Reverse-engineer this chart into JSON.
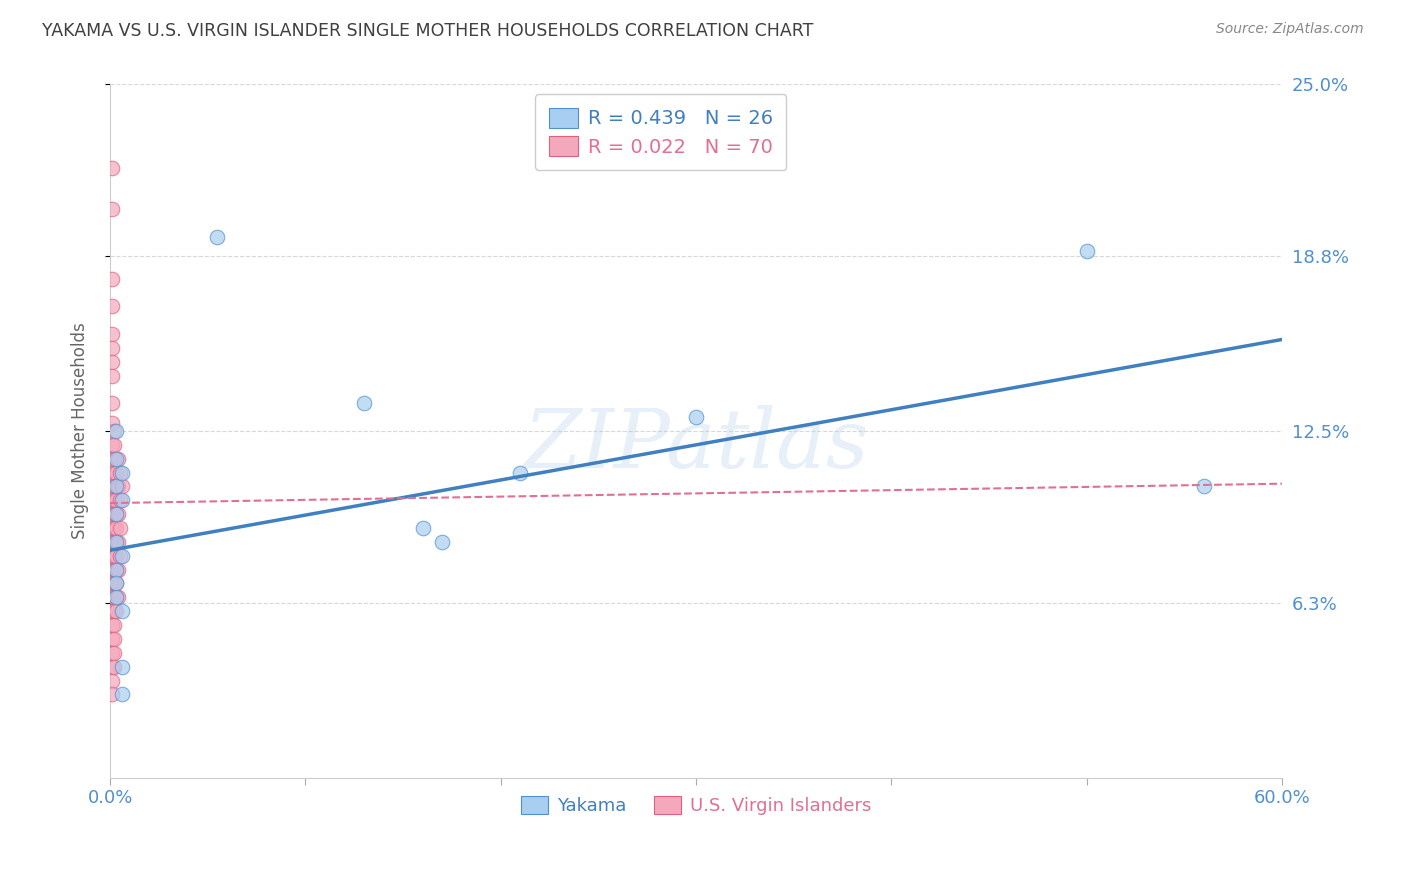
{
  "title": "YAKAMA VS U.S. VIRGIN ISLANDER SINGLE MOTHER HOUSEHOLDS CORRELATION CHART",
  "source": "Source: ZipAtlas.com",
  "ylabel": "Single Mother Households",
  "xlim": [
    0.0,
    0.6
  ],
  "ylim": [
    0.0,
    0.25
  ],
  "xtick_positions": [
    0.0,
    0.1,
    0.2,
    0.3,
    0.4,
    0.5,
    0.6
  ],
  "xticklabels": [
    "0.0%",
    "",
    "",
    "",
    "",
    "",
    "60.0%"
  ],
  "ytick_positions": [
    0.063,
    0.125,
    0.188,
    0.25
  ],
  "ytick_labels": [
    "6.3%",
    "12.5%",
    "18.8%",
    "25.0%"
  ],
  "background_color": "#ffffff",
  "grid_color": "#d8d8d8",
  "legend_r_blue": "R = 0.439",
  "legend_n_blue": "N = 26",
  "legend_r_pink": "R = 0.022",
  "legend_n_pink": "N = 70",
  "blue_fill": "#a8cef0",
  "pink_fill": "#f4a8bc",
  "blue_edge": "#5090d0",
  "pink_edge": "#e06080",
  "blue_line_color": "#4080c0",
  "pink_line_color": "#e07090",
  "axis_tick_color": "#5090d0",
  "title_color": "#404040",
  "watermark": "ZIPatlas",
  "yakama_scatter": [
    [
      0.003,
      0.085
    ],
    [
      0.003,
      0.095
    ],
    [
      0.003,
      0.105
    ],
    [
      0.003,
      0.075
    ],
    [
      0.003,
      0.115
    ],
    [
      0.003,
      0.125
    ],
    [
      0.003,
      0.065
    ],
    [
      0.003,
      0.07
    ],
    [
      0.006,
      0.11
    ],
    [
      0.006,
      0.1
    ],
    [
      0.006,
      0.08
    ],
    [
      0.006,
      0.06
    ],
    [
      0.006,
      0.04
    ],
    [
      0.006,
      0.03
    ],
    [
      0.055,
      0.195
    ],
    [
      0.13,
      0.135
    ],
    [
      0.16,
      0.09
    ],
    [
      0.17,
      0.085
    ],
    [
      0.21,
      0.11
    ],
    [
      0.3,
      0.13
    ],
    [
      0.5,
      0.19
    ],
    [
      0.56,
      0.105
    ]
  ],
  "virgin_islander_scatter": [
    [
      0.001,
      0.22
    ],
    [
      0.001,
      0.205
    ],
    [
      0.001,
      0.18
    ],
    [
      0.001,
      0.17
    ],
    [
      0.001,
      0.16
    ],
    [
      0.001,
      0.155
    ],
    [
      0.001,
      0.15
    ],
    [
      0.001,
      0.145
    ],
    [
      0.001,
      0.135
    ],
    [
      0.001,
      0.128
    ],
    [
      0.001,
      0.12
    ],
    [
      0.001,
      0.115
    ],
    [
      0.001,
      0.108
    ],
    [
      0.001,
      0.1
    ],
    [
      0.001,
      0.095
    ],
    [
      0.001,
      0.09
    ],
    [
      0.001,
      0.085
    ],
    [
      0.001,
      0.08
    ],
    [
      0.001,
      0.075
    ],
    [
      0.001,
      0.07
    ],
    [
      0.001,
      0.065
    ],
    [
      0.001,
      0.06
    ],
    [
      0.001,
      0.055
    ],
    [
      0.001,
      0.05
    ],
    [
      0.001,
      0.045
    ],
    [
      0.001,
      0.04
    ],
    [
      0.001,
      0.035
    ],
    [
      0.001,
      0.03
    ],
    [
      0.002,
      0.125
    ],
    [
      0.002,
      0.12
    ],
    [
      0.002,
      0.115
    ],
    [
      0.002,
      0.11
    ],
    [
      0.002,
      0.105
    ],
    [
      0.002,
      0.1
    ],
    [
      0.002,
      0.095
    ],
    [
      0.002,
      0.09
    ],
    [
      0.002,
      0.085
    ],
    [
      0.002,
      0.08
    ],
    [
      0.002,
      0.075
    ],
    [
      0.002,
      0.07
    ],
    [
      0.002,
      0.065
    ],
    [
      0.002,
      0.06
    ],
    [
      0.002,
      0.055
    ],
    [
      0.002,
      0.05
    ],
    [
      0.002,
      0.045
    ],
    [
      0.002,
      0.04
    ],
    [
      0.003,
      0.11
    ],
    [
      0.003,
      0.105
    ],
    [
      0.003,
      0.1
    ],
    [
      0.003,
      0.095
    ],
    [
      0.003,
      0.09
    ],
    [
      0.003,
      0.085
    ],
    [
      0.003,
      0.08
    ],
    [
      0.003,
      0.075
    ],
    [
      0.003,
      0.07
    ],
    [
      0.003,
      0.065
    ],
    [
      0.003,
      0.06
    ],
    [
      0.004,
      0.115
    ],
    [
      0.004,
      0.105
    ],
    [
      0.004,
      0.095
    ],
    [
      0.004,
      0.085
    ],
    [
      0.004,
      0.075
    ],
    [
      0.004,
      0.065
    ],
    [
      0.005,
      0.11
    ],
    [
      0.005,
      0.1
    ],
    [
      0.005,
      0.09
    ],
    [
      0.005,
      0.08
    ],
    [
      0.006,
      0.105
    ]
  ],
  "blue_line": [
    [
      0.0,
      0.082
    ],
    [
      0.6,
      0.158
    ]
  ],
  "pink_line": [
    [
      0.0,
      0.099
    ],
    [
      0.6,
      0.106
    ]
  ]
}
